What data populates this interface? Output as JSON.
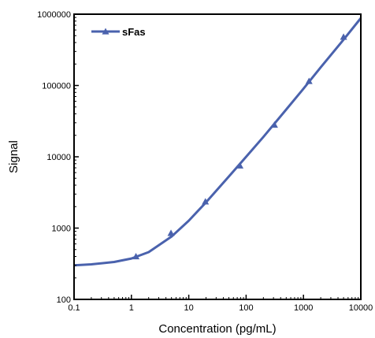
{
  "chart_data": {
    "type": "line",
    "title": "",
    "xlabel": "Concentration (pg/mL)",
    "ylabel": "Signal",
    "x_scale": "log",
    "y_scale": "log",
    "xlim": [
      0.1,
      10000
    ],
    "ylim": [
      100,
      1000000
    ],
    "grid": false,
    "legend_position": "top-left",
    "x_ticks": [
      "0.1",
      "1",
      "10",
      "100",
      "1000",
      "10000"
    ],
    "y_ticks": [
      "100",
      "1000",
      "10000",
      "100000",
      "1000000"
    ],
    "series": [
      {
        "name": "sFas",
        "color": "#4a62ad",
        "marker": "triangle",
        "points": [
          {
            "x": 1.2,
            "y": 400
          },
          {
            "x": 4.9,
            "y": 850
          },
          {
            "x": 19.5,
            "y": 2350
          },
          {
            "x": 78,
            "y": 7500
          },
          {
            "x": 312,
            "y": 28000
          },
          {
            "x": 1250,
            "y": 115000
          },
          {
            "x": 5000,
            "y": 480000
          }
        ],
        "curve": [
          {
            "x": 0.1,
            "y": 300
          },
          {
            "x": 0.2,
            "y": 310
          },
          {
            "x": 0.5,
            "y": 335
          },
          {
            "x": 1,
            "y": 375
          },
          {
            "x": 2,
            "y": 460
          },
          {
            "x": 5,
            "y": 760
          },
          {
            "x": 10,
            "y": 1270
          },
          {
            "x": 20,
            "y": 2300
          },
          {
            "x": 50,
            "y": 5300
          },
          {
            "x": 100,
            "y": 10000
          },
          {
            "x": 200,
            "y": 19000
          },
          {
            "x": 500,
            "y": 46000
          },
          {
            "x": 1000,
            "y": 90000
          },
          {
            "x": 2000,
            "y": 180000
          },
          {
            "x": 5000,
            "y": 440000
          },
          {
            "x": 10000,
            "y": 880000
          }
        ]
      }
    ]
  }
}
